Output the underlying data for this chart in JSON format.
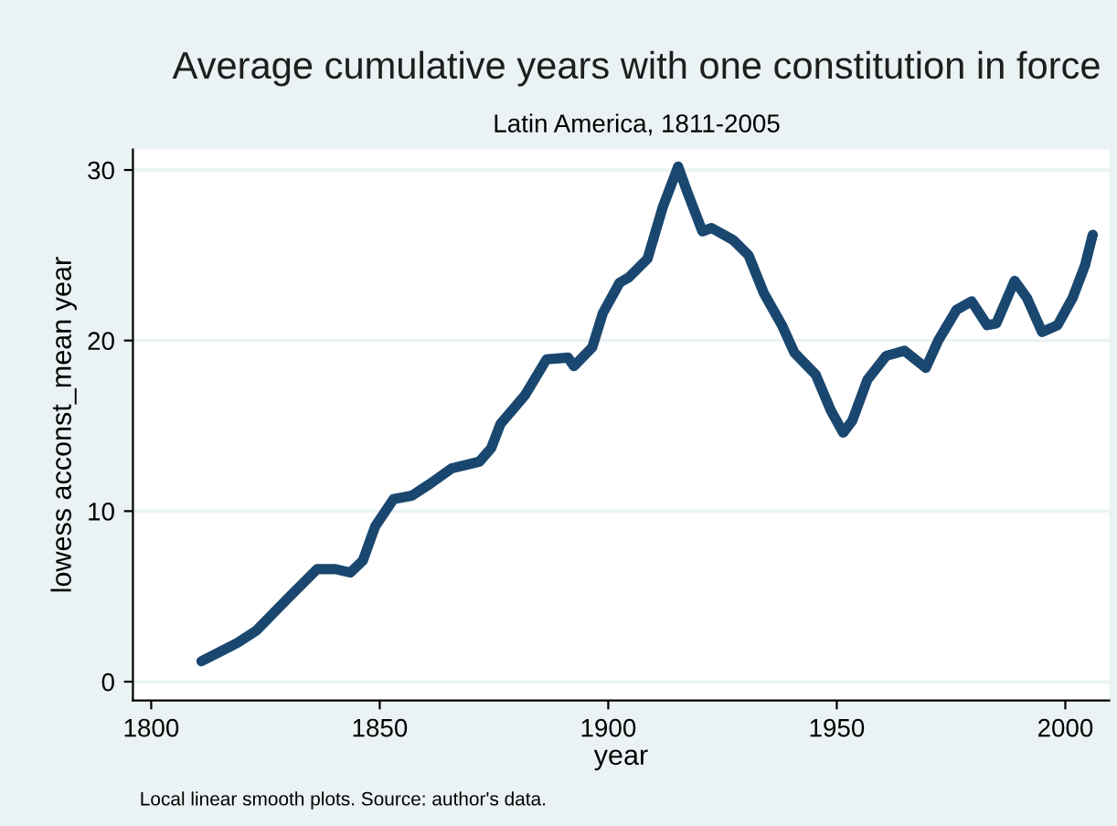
{
  "chart_data": {
    "type": "line",
    "title": "Average cumulative years with one constitution in force",
    "subtitle": "Latin America, 1811-2005",
    "xlabel": "year",
    "ylabel": "lowess acconst_mean year",
    "annotations": [
      "Local linear smooth plots. Source: author's data."
    ],
    "x": [
      1811,
      1819,
      1823,
      1829.6,
      1836.3,
      1840.3,
      1843.6,
      1846.3,
      1849,
      1853,
      1857,
      1861,
      1865.7,
      1871.8,
      1874.4,
      1876.4,
      1881.8,
      1886.5,
      1891.2,
      1892.5,
      1896.5,
      1898.8,
      1902.5,
      1904.5,
      1908.6,
      1911.9,
      1915.3,
      1917.3,
      1920.6,
      1922.6,
      1927.3,
      1930.7,
      1934,
      1938,
      1940.7,
      1945.4,
      1948.7,
      1951.4,
      1953.4,
      1956.7,
      1960.8,
      1964.8,
      1969.5,
      1972.2,
      1976.2,
      1979.5,
      1982.9,
      1984.9,
      1988.9,
      1991.6,
      1994.9,
      1998.3,
      2001.6,
      2004.3,
      2006
    ],
    "series": [
      {
        "color": "#1a476f",
        "values": [
          1.2,
          2.3,
          3.0,
          4.8,
          6.6,
          6.6,
          6.4,
          7.1,
          9.1,
          10.7,
          10.9,
          11.6,
          12.5,
          12.9,
          13.7,
          15.1,
          16.8,
          18.9,
          19.0,
          18.5,
          19.6,
          21.6,
          23.4,
          23.7,
          24.8,
          27.8,
          30.2,
          28.7,
          26.4,
          26.6,
          25.9,
          25.0,
          22.8,
          20.9,
          19.3,
          18.0,
          15.9,
          14.6,
          15.3,
          17.7,
          19.1,
          19.4,
          18.4,
          20.0,
          21.8,
          22.3,
          20.9,
          21.0,
          23.5,
          22.5,
          20.5,
          20.9,
          22.5,
          24.4,
          26.2
        ]
      }
    ],
    "xlim": [
      1796,
      2009.6
    ],
    "ylim": [
      -1.1,
      31.2
    ],
    "xticks": [
      1800,
      1850,
      1900,
      1950,
      2000
    ],
    "yticks": [
      0,
      10,
      20,
      30
    ],
    "grid": "y"
  }
}
